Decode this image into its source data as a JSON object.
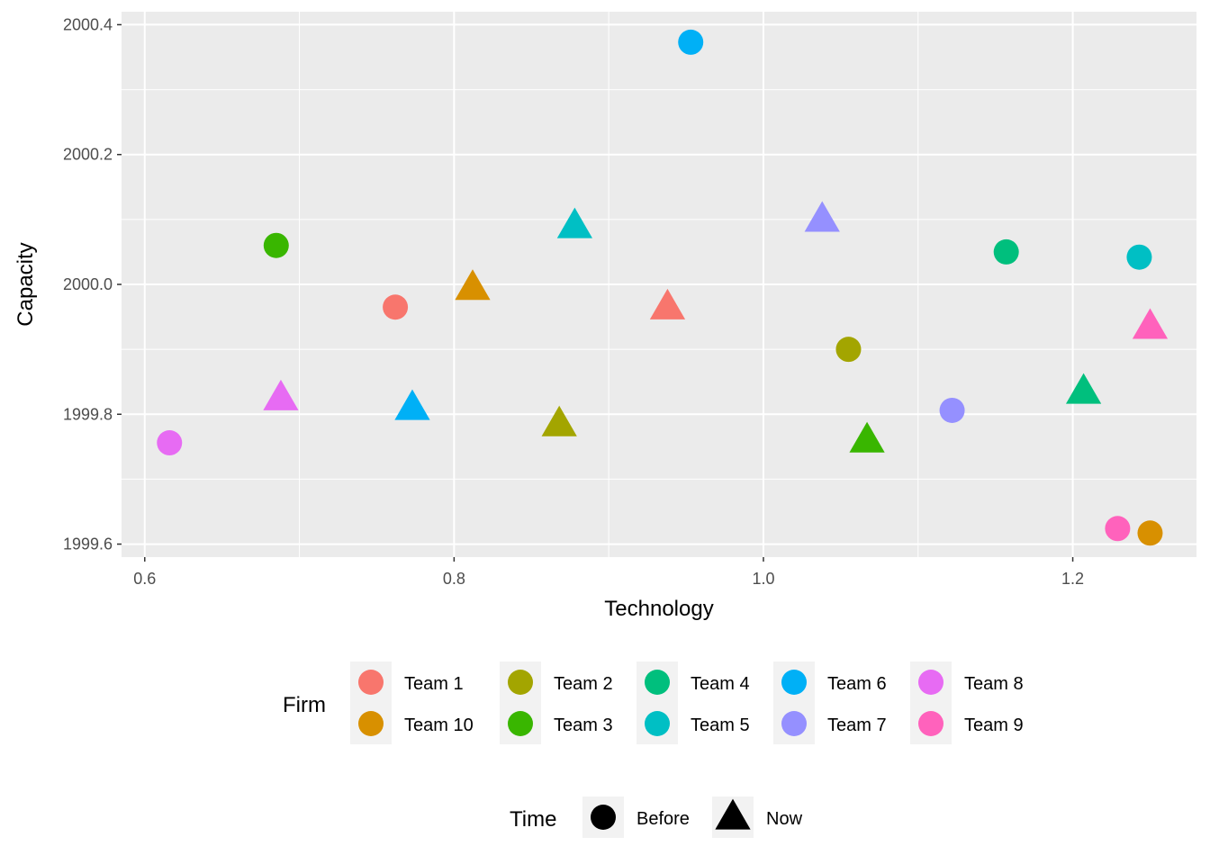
{
  "chart_data": {
    "type": "scatter",
    "xlabel": "Technology",
    "ylabel": "Capacity",
    "xlim": [
      0.585,
      1.28
    ],
    "ylim": [
      1999.58,
      2000.42
    ],
    "xticks": [
      0.6,
      0.8,
      1.0,
      1.2
    ],
    "xtick_labels": [
      "0.6",
      "0.8",
      "1.0",
      "1.2"
    ],
    "yticks": [
      1999.6,
      1999.8,
      2000.0,
      2000.2,
      2000.4
    ],
    "ytick_labels": [
      "1999.6",
      "1999.8",
      "2000.0",
      "2000.2",
      "2000.4"
    ],
    "grid": true,
    "legend_position": "bottom",
    "firm_legend": {
      "title": "Firm",
      "entries": [
        {
          "label": "Team 1",
          "color": "#F8766D"
        },
        {
          "label": "Team 10",
          "color": "#D89000"
        },
        {
          "label": "Team 2",
          "color": "#A3A500"
        },
        {
          "label": "Team 3",
          "color": "#39B600"
        },
        {
          "label": "Team 4",
          "color": "#00BF7D"
        },
        {
          "label": "Team 5",
          "color": "#00BFC4"
        },
        {
          "label": "Team 6",
          "color": "#00B0F6"
        },
        {
          "label": "Team 7",
          "color": "#9590FF"
        },
        {
          "label": "Team 8",
          "color": "#E76BF3"
        },
        {
          "label": "Team 9",
          "color": "#FF62BC"
        }
      ]
    },
    "time_legend": {
      "title": "Time",
      "entries": [
        {
          "label": "Before",
          "shape": "circle"
        },
        {
          "label": "Now",
          "shape": "triangle"
        }
      ]
    },
    "points": [
      {
        "firm": "Team 1",
        "time": "Before",
        "x": 0.762,
        "y": 1999.965
      },
      {
        "firm": "Team 1",
        "time": "Now",
        "x": 0.938,
        "y": 1999.965
      },
      {
        "firm": "Team 10",
        "time": "Before",
        "x": 1.25,
        "y": 1999.617
      },
      {
        "firm": "Team 10",
        "time": "Now",
        "x": 0.812,
        "y": 1999.995
      },
      {
        "firm": "Team 2",
        "time": "Before",
        "x": 1.055,
        "y": 1999.9
      },
      {
        "firm": "Team 2",
        "time": "Now",
        "x": 0.868,
        "y": 1999.785
      },
      {
        "firm": "Team 3",
        "time": "Before",
        "x": 0.685,
        "y": 2000.06
      },
      {
        "firm": "Team 3",
        "time": "Now",
        "x": 1.067,
        "y": 1999.76
      },
      {
        "firm": "Team 4",
        "time": "Before",
        "x": 1.157,
        "y": 2000.05
      },
      {
        "firm": "Team 4",
        "time": "Now",
        "x": 1.207,
        "y": 1999.835
      },
      {
        "firm": "Team 5",
        "time": "Before",
        "x": 1.243,
        "y": 2000.042
      },
      {
        "firm": "Team 5",
        "time": "Now",
        "x": 0.878,
        "y": 2000.09
      },
      {
        "firm": "Team 6",
        "time": "Before",
        "x": 0.953,
        "y": 2000.373
      },
      {
        "firm": "Team 6",
        "time": "Now",
        "x": 0.773,
        "y": 1999.81
      },
      {
        "firm": "Team 7",
        "time": "Before",
        "x": 1.122,
        "y": 1999.806
      },
      {
        "firm": "Team 7",
        "time": "Now",
        "x": 1.038,
        "y": 2000.1
      },
      {
        "firm": "Team 8",
        "time": "Before",
        "x": 0.616,
        "y": 1999.756
      },
      {
        "firm": "Team 8",
        "time": "Now",
        "x": 0.688,
        "y": 1999.825
      },
      {
        "firm": "Team 9",
        "time": "Before",
        "x": 1.229,
        "y": 1999.624
      },
      {
        "firm": "Team 9",
        "time": "Now",
        "x": 1.25,
        "y": 1999.935
      }
    ]
  }
}
